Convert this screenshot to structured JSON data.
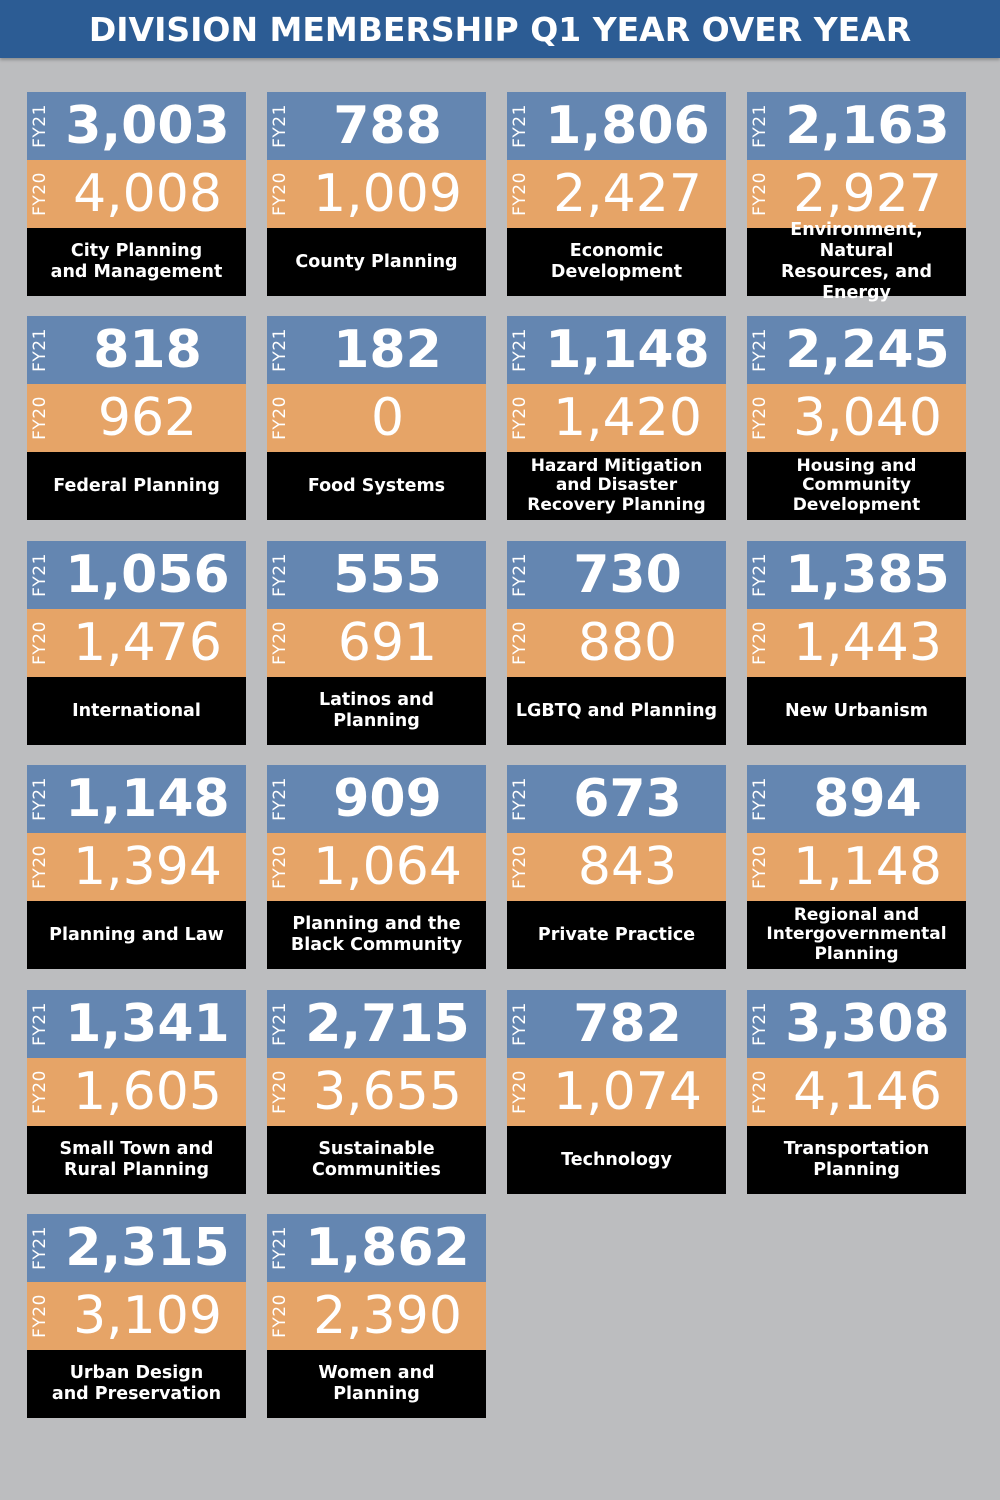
{
  "header": {
    "title": "DIVISION MEMBERSHIP Q1 YEAR OVER YEAR"
  },
  "labels": {
    "current": "FY21",
    "previous": "FY20"
  },
  "colors": {
    "header_bg": "#2c5c94",
    "fy21": "#6486b1",
    "fy20": "#e6a467",
    "label_bg": "#000000",
    "background": "#bcbdbf"
  },
  "chart_data": {
    "type": "table",
    "title": "DIVISION MEMBERSHIP Q1 YEAR OVER YEAR",
    "columns": [
      "FY21",
      "FY20"
    ],
    "rows": [
      {
        "name": "City Planning\nand Management",
        "fy21": "3,003",
        "fy20": "4,008"
      },
      {
        "name": "County Planning",
        "fy21": "788",
        "fy20": "1,009"
      },
      {
        "name": "Economic\nDevelopment",
        "fy21": "1,806",
        "fy20": "2,427"
      },
      {
        "name": "Environment, Natural\nResources, and Energy",
        "fy21": "2,163",
        "fy20": "2,927"
      },
      {
        "name": "Federal Planning",
        "fy21": "818",
        "fy20": "962"
      },
      {
        "name": "Food Systems",
        "fy21": "182",
        "fy20": "0"
      },
      {
        "name": "Hazard Mitigation\nand Disaster\nRecovery Planning",
        "fy21": "1,148",
        "fy20": "1,420"
      },
      {
        "name": "Housing and\nCommunity\nDevelopment",
        "fy21": "2,245",
        "fy20": "3,040"
      },
      {
        "name": "International",
        "fy21": "1,056",
        "fy20": "1,476"
      },
      {
        "name": "Latinos and Planning",
        "fy21": "555",
        "fy20": "691"
      },
      {
        "name": "LGBTQ and Planning",
        "fy21": "730",
        "fy20": "880"
      },
      {
        "name": "New Urbanism",
        "fy21": "1,385",
        "fy20": "1,443"
      },
      {
        "name": "Planning and Law",
        "fy21": "1,148",
        "fy20": "1,394"
      },
      {
        "name": "Planning and the\nBlack Community",
        "fy21": "909",
        "fy20": "1,064"
      },
      {
        "name": "Private Practice",
        "fy21": "673",
        "fy20": "843"
      },
      {
        "name": "Regional and\nIntergovernmental\nPlanning",
        "fy21": "894",
        "fy20": "1,148"
      },
      {
        "name": "Small Town and\nRural Planning",
        "fy21": "1,341",
        "fy20": "1,605"
      },
      {
        "name": "Sustainable\nCommunities",
        "fy21": "2,715",
        "fy20": "3,655"
      },
      {
        "name": "Technology",
        "fy21": "782",
        "fy20": "1,074"
      },
      {
        "name": "Transportation\nPlanning",
        "fy21": "3,308",
        "fy20": "4,146"
      },
      {
        "name": "Urban Design\nand Preservation",
        "fy21": "2,315",
        "fy20": "3,109"
      },
      {
        "name": "Women and Planning",
        "fy21": "1,862",
        "fy20": "2,390"
      }
    ]
  }
}
